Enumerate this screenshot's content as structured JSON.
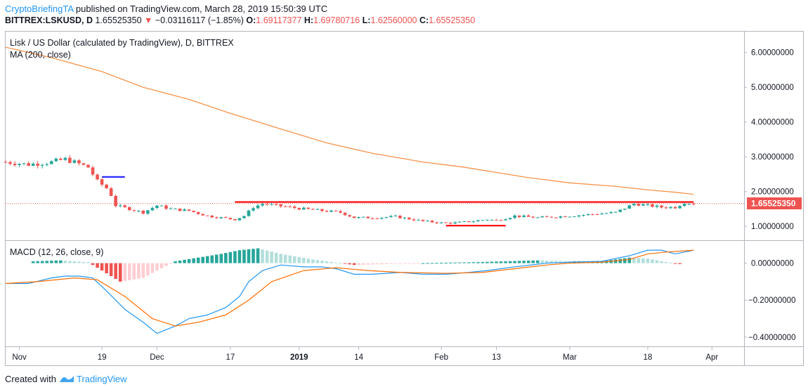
{
  "header": {
    "author": "CryptoBriefingTA",
    "published": "published on TradingView.com, March 28, 2019 15:50:39 UTC",
    "symbol": "BITTREX:LSKUSD, D",
    "last": "1.65525350",
    "change": "−0.03116117 (−1.85%)",
    "o_label": "O:",
    "o_value": "1.69117377",
    "h_label": "H:",
    "h_value": "1.69780716",
    "l_label": "L:",
    "l_value": "1.62560000",
    "c_label": "C:",
    "c_value": "1.65525350"
  },
  "main_pane": {
    "legend_title": "Lisk / US Dollar (calculated by TradingView), D, BITTREX",
    "legend_ma": "MA (200, close)",
    "price_tag": "1.65525350",
    "y_ticks": [
      "6.00000000",
      "5.00000000",
      "4.00000000",
      "3.00000000",
      "2.00000000",
      "1.00000000"
    ]
  },
  "macd_pane": {
    "legend": "MACD (12, 26, close, 9)",
    "y_ticks": [
      "0.00000000",
      "−0.20000000",
      "−0.40000000"
    ]
  },
  "x_axis": {
    "labels": [
      "Nov",
      "19",
      "Dec",
      "17",
      "2019",
      "14",
      "Feb",
      "13",
      "Mar",
      "18",
      "Apr"
    ]
  },
  "footer": {
    "created_with": "Created with",
    "brand": "TradingView"
  },
  "colors": {
    "up": "#26a69a",
    "down": "#ef5350",
    "ma": "#f7934a",
    "macd": "#2196f3",
    "signal": "#ff6d00",
    "resistance": "#ff0000",
    "marker": "#2b2bff"
  },
  "chart_data": [
    {
      "type": "candlestick",
      "title": "Lisk / US Dollar (calculated by TradingView), D, BITTREX",
      "ylim": [
        0.6,
        6.6
      ],
      "x_range": [
        "2018-10-29",
        "2019-04-08"
      ],
      "price": [
        [
          "2018-10-29",
          2.85
        ],
        [
          "2018-11-03",
          2.78
        ],
        [
          "2018-11-08",
          2.85
        ],
        [
          "2018-11-11",
          2.93
        ],
        [
          "2018-11-14",
          2.8
        ],
        [
          "2018-11-16",
          2.7
        ],
        [
          "2018-11-17",
          2.5
        ],
        [
          "2018-11-18",
          2.3
        ],
        [
          "2018-11-20",
          2.1
        ],
        [
          "2018-11-21",
          1.9
        ],
        [
          "2018-11-22",
          1.6
        ],
        [
          "2018-11-25",
          1.5
        ],
        [
          "2018-11-28",
          1.4
        ],
        [
          "2018-12-01",
          1.6
        ],
        [
          "2018-12-04",
          1.5
        ],
        [
          "2018-12-08",
          1.45
        ],
        [
          "2018-12-12",
          1.3
        ],
        [
          "2018-12-15",
          1.25
        ],
        [
          "2018-12-18",
          1.2
        ],
        [
          "2018-12-20",
          1.3
        ],
        [
          "2018-12-22",
          1.55
        ],
        [
          "2018-12-24",
          1.65
        ],
        [
          "2018-12-28",
          1.58
        ],
        [
          "2019-01-02",
          1.5
        ],
        [
          "2019-01-06",
          1.45
        ],
        [
          "2019-01-10",
          1.4
        ],
        [
          "2019-01-13",
          1.25
        ],
        [
          "2019-01-18",
          1.25
        ],
        [
          "2019-01-22",
          1.28
        ],
        [
          "2019-01-28",
          1.15
        ],
        [
          "2019-02-01",
          1.1
        ],
        [
          "2019-02-04",
          1.1
        ],
        [
          "2019-02-08",
          1.15
        ],
        [
          "2019-02-11",
          1.2
        ],
        [
          "2019-02-13",
          1.17
        ],
        [
          "2019-02-17",
          1.3
        ],
        [
          "2019-02-22",
          1.25
        ],
        [
          "2019-03-01",
          1.3
        ],
        [
          "2019-03-06",
          1.35
        ],
        [
          "2019-03-11",
          1.4
        ],
        [
          "2019-03-15",
          1.65
        ],
        [
          "2019-03-18",
          1.6
        ],
        [
          "2019-03-21",
          1.55
        ],
        [
          "2019-03-24",
          1.55
        ],
        [
          "2019-03-26",
          1.69
        ],
        [
          "2019-03-28",
          1.6552535
        ]
      ],
      "ma200": [
        [
          "2018-10-29",
          6.15
        ],
        [
          "2018-11-08",
          5.85
        ],
        [
          "2018-11-19",
          5.45
        ],
        [
          "2018-11-28",
          5.0
        ],
        [
          "2018-12-08",
          4.65
        ],
        [
          "2018-12-17",
          4.25
        ],
        [
          "2018-12-28",
          3.8
        ],
        [
          "2019-01-07",
          3.4
        ],
        [
          "2019-01-17",
          3.1
        ],
        [
          "2019-01-28",
          2.85
        ],
        [
          "2019-02-06",
          2.7
        ],
        [
          "2019-02-13",
          2.55
        ],
        [
          "2019-02-20",
          2.4
        ],
        [
          "2019-03-01",
          2.25
        ],
        [
          "2019-03-11",
          2.15
        ],
        [
          "2019-03-18",
          2.05
        ],
        [
          "2019-03-24",
          1.98
        ],
        [
          "2019-03-28",
          1.92
        ]
      ],
      "last_price": 1.6552535,
      "lines": [
        {
          "name": "resistance",
          "x": [
            "2018-12-18",
            "2019-03-28"
          ],
          "y": [
            1.7,
            1.7
          ]
        },
        {
          "name": "support",
          "x": [
            "2019-02-02",
            "2019-02-15"
          ],
          "y": [
            1.02,
            1.02
          ]
        },
        {
          "name": "breakdown-marker",
          "x": [
            "2018-11-19",
            "2018-11-24"
          ],
          "y": [
            2.42,
            2.42
          ]
        }
      ]
    },
    {
      "type": "macd",
      "title": "MACD (12, 26, close, 9)",
      "ylim": [
        -0.45,
        0.12
      ],
      "macd": [
        [
          "2018-10-29",
          -0.11
        ],
        [
          "2018-11-03",
          -0.11
        ],
        [
          "2018-11-08",
          -0.08
        ],
        [
          "2018-11-11",
          -0.07
        ],
        [
          "2018-11-14",
          -0.07
        ],
        [
          "2018-11-17",
          -0.08
        ],
        [
          "2018-11-20",
          -0.15
        ],
        [
          "2018-11-24",
          -0.25
        ],
        [
          "2018-11-28",
          -0.32
        ],
        [
          "2018-12-01",
          -0.38
        ],
        [
          "2018-12-05",
          -0.34
        ],
        [
          "2018-12-08",
          -0.3
        ],
        [
          "2018-12-12",
          -0.28
        ],
        [
          "2018-12-16",
          -0.24
        ],
        [
          "2018-12-19",
          -0.18
        ],
        [
          "2018-12-21",
          -0.1
        ],
        [
          "2018-12-24",
          -0.04
        ],
        [
          "2018-12-28",
          -0.01
        ],
        [
          "2019-01-02",
          -0.02
        ],
        [
          "2019-01-06",
          -0.02
        ],
        [
          "2019-01-09",
          -0.03
        ],
        [
          "2019-01-13",
          -0.06
        ],
        [
          "2019-01-17",
          -0.06
        ],
        [
          "2019-01-23",
          -0.05
        ],
        [
          "2019-01-28",
          -0.06
        ],
        [
          "2019-02-02",
          -0.06
        ],
        [
          "2019-02-07",
          -0.05
        ],
        [
          "2019-02-11",
          -0.04
        ],
        [
          "2019-02-17",
          -0.02
        ],
        [
          "2019-02-24",
          0.0
        ],
        [
          "2019-03-01",
          0.005
        ],
        [
          "2019-03-08",
          0.01
        ],
        [
          "2019-03-14",
          0.04
        ],
        [
          "2019-03-18",
          0.07
        ],
        [
          "2019-03-21",
          0.07
        ],
        [
          "2019-03-24",
          0.05
        ],
        [
          "2019-03-28",
          0.07
        ]
      ],
      "signal": [
        [
          "2018-10-29",
          -0.11
        ],
        [
          "2018-11-05",
          -0.1
        ],
        [
          "2018-11-13",
          -0.08
        ],
        [
          "2018-11-18",
          -0.09
        ],
        [
          "2018-11-24",
          -0.18
        ],
        [
          "2018-11-30",
          -0.3
        ],
        [
          "2018-12-05",
          -0.34
        ],
        [
          "2018-12-10",
          -0.32
        ],
        [
          "2018-12-16",
          -0.28
        ],
        [
          "2018-12-21",
          -0.2
        ],
        [
          "2018-12-26",
          -0.1
        ],
        [
          "2019-01-02",
          -0.04
        ],
        [
          "2019-01-09",
          -0.025
        ],
        [
          "2019-01-16",
          -0.04
        ],
        [
          "2019-01-23",
          -0.05
        ],
        [
          "2019-02-02",
          -0.055
        ],
        [
          "2019-02-10",
          -0.05
        ],
        [
          "2019-02-17",
          -0.03
        ],
        [
          "2019-02-24",
          -0.01
        ],
        [
          "2019-03-01",
          0.0
        ],
        [
          "2019-03-08",
          0.005
        ],
        [
          "2019-03-14",
          0.02
        ],
        [
          "2019-03-18",
          0.05
        ],
        [
          "2019-03-22",
          0.06
        ],
        [
          "2019-03-28",
          0.07
        ]
      ],
      "histogram": [
        [
          "2018-11-04",
          0.01
        ],
        [
          "2018-11-10",
          0.015
        ],
        [
          "2018-11-16",
          0.005
        ],
        [
          "2018-11-19",
          -0.04
        ],
        [
          "2018-11-23",
          -0.1
        ],
        [
          "2018-11-28",
          -0.08
        ],
        [
          "2018-12-01",
          -0.04
        ],
        [
          "2018-12-05",
          0.01
        ],
        [
          "2018-12-10",
          0.03
        ],
        [
          "2018-12-15",
          0.05
        ],
        [
          "2018-12-19",
          0.07
        ],
        [
          "2018-12-23",
          0.08
        ],
        [
          "2018-12-28",
          0.05
        ],
        [
          "2019-01-04",
          0.02
        ],
        [
          "2019-01-13",
          -0.01
        ],
        [
          "2019-01-20",
          -0.005
        ],
        [
          "2019-01-28",
          0.0
        ],
        [
          "2019-02-08",
          0.005
        ],
        [
          "2019-02-15",
          0.01
        ],
        [
          "2019-02-22",
          0.015
        ],
        [
          "2019-03-01",
          0.01
        ],
        [
          "2019-03-08",
          0.01
        ],
        [
          "2019-03-14",
          0.03
        ],
        [
          "2019-03-18",
          0.025
        ],
        [
          "2019-03-21",
          0.01
        ],
        [
          "2019-03-25",
          -0.005
        ]
      ]
    }
  ]
}
